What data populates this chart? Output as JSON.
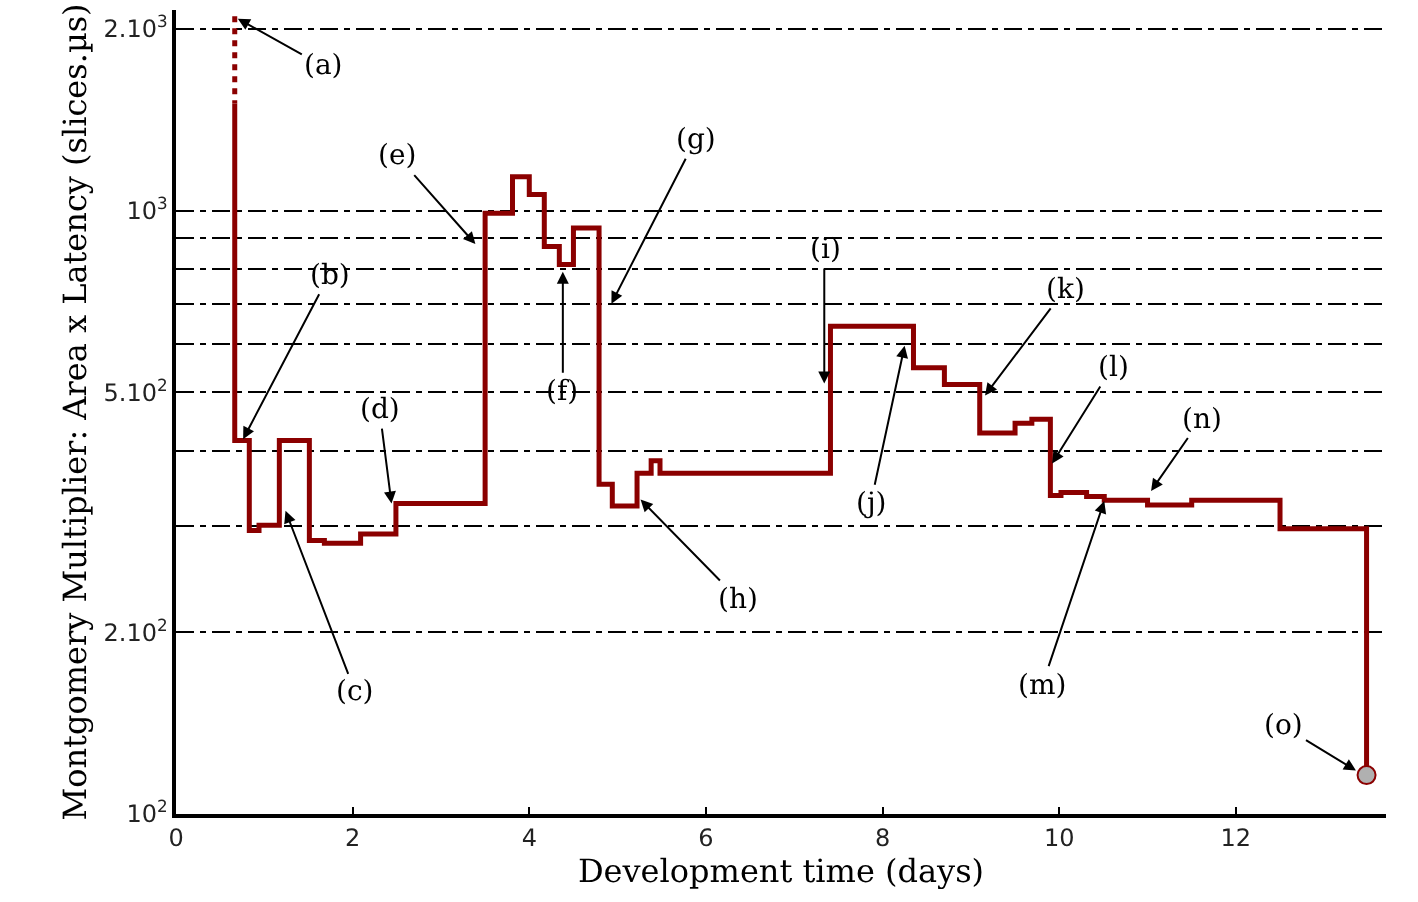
{
  "chart_data": {
    "type": "step",
    "xlabel": "Development time (days)",
    "ylabel": "Montgomery Multiplier: Area x Latency (slices.µs)",
    "log": "y",
    "grid": "y",
    "marker": "none",
    "xlim": [
      0,
      13.7
    ],
    "xticks": [
      0,
      2,
      4,
      6,
      8,
      10,
      12
    ],
    "ylim": [
      100,
      2150
    ],
    "yticks": [
      {
        "value": 100,
        "label": "10$^{2}$"
      },
      {
        "value": 200,
        "label": "2.10$^{2}$"
      },
      {
        "value": 300,
        "label": null
      },
      {
        "value": 400,
        "label": null
      },
      {
        "value": 500,
        "label": "5.10$^{2}$"
      },
      {
        "value": 600,
        "label": null
      },
      {
        "value": 700,
        "label": null
      },
      {
        "value": 800,
        "label": null
      },
      {
        "value": 900,
        "label": null
      },
      {
        "value": 1000,
        "label": "10$^{3}$"
      },
      {
        "value": 2000,
        "label": "2.10$^{3}$"
      }
    ],
    "series": [
      {
        "type": "line",
        "line_style": "dotted",
        "color": "#8b0000",
        "x": [
          0.665,
          0.665
        ],
        "values": [
          2100,
          1505
        ]
      },
      {
        "line_style": "solid",
        "color": "#8b0000",
        "x": [
          0.665,
          0.665,
          0.83,
          0.94,
          1.17,
          1.51,
          1.68,
          2.09,
          2.49,
          3.5,
          3.81,
          4.0,
          4.17,
          4.34,
          4.5,
          4.79,
          4.94,
          5.22,
          5.38,
          5.48,
          7.41,
          8.35,
          8.7,
          9.1,
          9.5,
          9.69,
          9.9,
          10.02,
          10.31,
          10.51,
          11.0,
          11.5,
          12.5,
          13.48
        ],
        "values": [
          1505,
          416,
          295,
          301,
          416,
          284,
          281,
          291,
          327,
          990,
          1138,
          1063,
          872,
          814,
          936,
          352,
          324,
          367,
          385,
          367,
          643,
          549,
          515,
          428,
          444,
          451,
          337,
          341,
          336,
          331,
          325,
          331,
          297,
          116
        ]
      },
      {
        "type": "scatter",
        "marker": "circle",
        "color": "#b0b0b0",
        "x": [
          13.48
        ],
        "values": [
          116
        ]
      }
    ],
    "annotations": [
      {
        "text": "(a)",
        "x": 0.7,
        "y": 2080
      },
      {
        "text": "(b)",
        "x": 0.76,
        "y": 418
      },
      {
        "text": "(c)",
        "x": 1.24,
        "y": 318
      },
      {
        "text": "(d)",
        "x": 2.44,
        "y": 327
      },
      {
        "text": "(e)",
        "x": 3.39,
        "y": 880
      },
      {
        "text": "(f)",
        "x": 4.38,
        "y": 792
      },
      {
        "text": "(g)",
        "x": 4.93,
        "y": 701
      },
      {
        "text": "(h)",
        "x": 5.26,
        "y": 332
      },
      {
        "text": "(i)",
        "x": 7.34,
        "y": 517
      },
      {
        "text": "(j)",
        "x": 8.25,
        "y": 597
      },
      {
        "text": "(k)",
        "x": 9.16,
        "y": 494
      },
      {
        "text": "(l)",
        "x": 9.92,
        "y": 381
      },
      {
        "text": "(m)",
        "x": 10.51,
        "y": 330
      },
      {
        "text": "(n)",
        "x": 11.04,
        "y": 343
      },
      {
        "text": "(o)",
        "x": 13.36,
        "y": 118
      }
    ]
  }
}
